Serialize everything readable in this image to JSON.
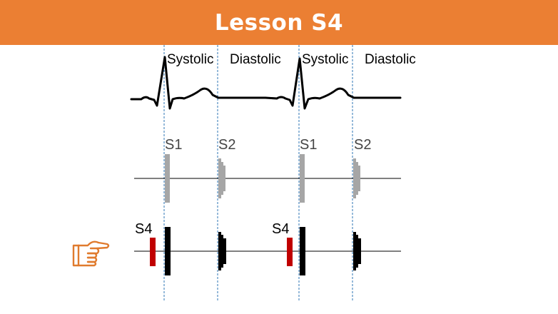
{
  "header": {
    "title": "Lesson S4",
    "background_color": "#EB7F33",
    "text_color": "#FFFFFF"
  },
  "ecg": {
    "phase_labels": [
      "Systolic",
      "Diastolic",
      "Systolic",
      "Diastolic"
    ]
  },
  "normal_sounds": {
    "labels": [
      "S1",
      "S2",
      "S1",
      "S2"
    ],
    "color": "#A6A6A6"
  },
  "s4_sounds": {
    "labels": [
      "S4",
      "S4"
    ],
    "s4_color": "#C00000",
    "heart_sound_color": "#000000"
  },
  "pointer": {
    "icon": "pointing-hand-icon",
    "color": "#E07B2E"
  },
  "guide_color": "#2E75B6"
}
